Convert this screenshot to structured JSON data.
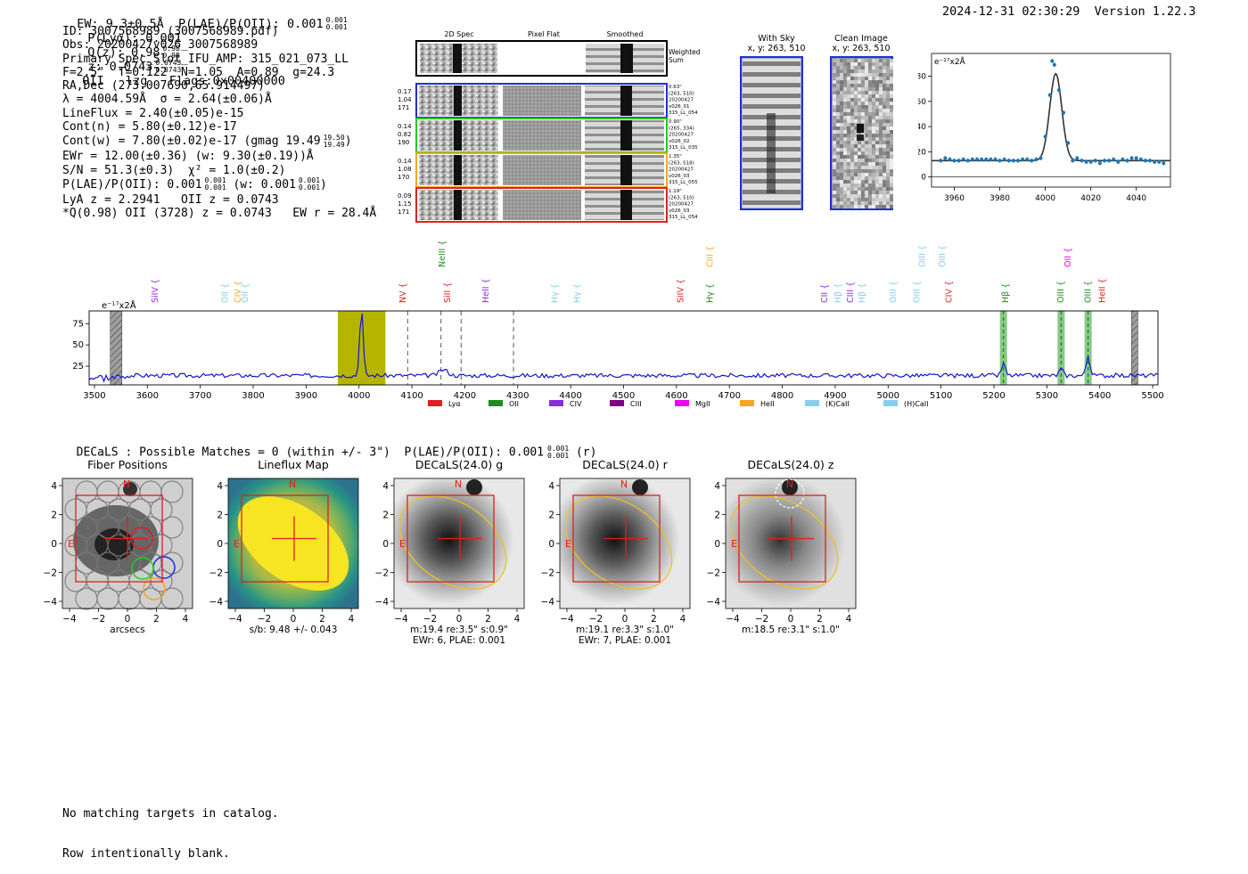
{
  "header": {
    "left": "EW: 9.3±0.5Å  P(LAE)/P(OII): 0.001",
    "left_sup": "0.001",
    "left_sub": "0.001",
    "plya": "P(Lyα): 0.001",
    "qz": "Q(z): 0.98",
    "qz_sup": "0.98",
    "qz_sub": "0.98",
    "z": "z: 0.0743",
    "z_sup": "0.0743",
    "z_sub": "0.0743",
    "tail": "OII   lzg   Flags:0x00400000",
    "right": "2024-12-31 02:30:29  Version 1.22.3"
  },
  "info": {
    "l1": "ID: 3007568989 (3007568989.pdf)",
    "l2": "Obs: 20200427v026_3007568989",
    "l3": "Primary Spec_Slot_IFU_AMP: 315_021_073_LL",
    "l4": "F=2.5\"  T=0.122  N=1.05  A=0.89  g=24.3",
    "l5": "RA,Dec (273.007690,65.914497)",
    "l6": "λ = 4004.59Å  σ = 2.64(±0.06)Å",
    "l7": "LineFlux = 2.40(±0.05)e-15",
    "l8": "Cont(n) = 5.80(±0.12)e-17",
    "l9": "Cont(w) = 7.80(±0.02)e-17 (gmag 19.49",
    "l9_sup": "19.50",
    "l9_sub": "19.49",
    "l9_end": ")",
    "l10": "EWr = 12.00(±0.36) (w: 9.30(±0.19))Å",
    "l11": "S/N = 51.3(±0.3)  χ² = 1.0(±0.2)",
    "l12": "P(LAE)/P(OII): 0.001",
    "l12_sup": "0.001",
    "l12_sub": "0.001",
    "l12_mid": "(w: 0.001",
    "l12_sup2": "0.001",
    "l12_sub2": "0.001",
    "l12_end": ")",
    "l13": "LyA z = 2.2941   OII z = 0.0743",
    "l14": "*Q(0.98) OII (3728) z = 0.0743   EW r = 28.4Å"
  },
  "cutouts": {
    "col_2d": "2D Spec",
    "col_flat": "Pixel Flat",
    "col_smooth": "Smoothed",
    "weighted": "Weighted\nSum",
    "rows": [
      {
        "left": [
          "0.17",
          "1.04",
          "171"
        ],
        "right": [
          "0.63\"",
          "(263, 510)",
          "20200427",
          "v026_01",
          "315_LL_054"
        ],
        "color": "#1f2fd6"
      },
      {
        "left": [
          "0.14",
          "0.82",
          "190"
        ],
        "right": [
          "0.90\"",
          "(265, 334)",
          "20200427",
          "v026_02",
          "315_LL_035"
        ],
        "color": "#22cc22"
      },
      {
        "left": [
          "0.14",
          "1.08",
          "170"
        ],
        "right": [
          "1.35\"",
          "(263, 518)",
          "20200427",
          "v026_03",
          "315_LL_055"
        ],
        "color": "#f5a623"
      },
      {
        "left": [
          "0.09",
          "1.15",
          "171"
        ],
        "right": [
          "1.19\"",
          "(263, 510)",
          "20200427",
          "v026_03",
          "315_LL_054"
        ],
        "color": "#e02020"
      }
    ]
  },
  "sky": {
    "title": "With Sky",
    "coords": "x, y: 263, 510"
  },
  "clean": {
    "title": "Clean Image",
    "coords": "x, y: 263, 510"
  },
  "zoom_chart": {
    "type": "scatter",
    "unit_label": "e⁻¹⁷x2Å",
    "xlim": [
      3950,
      4055
    ],
    "ylim": [
      -8,
      98
    ],
    "xticks": [
      3960,
      3980,
      4000,
      4020,
      4040
    ],
    "yticks": [
      0,
      20,
      40,
      60,
      80
    ],
    "x": [
      3954,
      3956,
      3958,
      3960,
      3962,
      3964,
      3966,
      3968,
      3970,
      3972,
      3974,
      3976,
      3978,
      3980,
      3982,
      3984,
      3986,
      3988,
      3990,
      3992,
      3994,
      3996,
      3998,
      4000,
      4002,
      4003,
      4004,
      4006,
      4008,
      4010,
      4012,
      4014,
      4016,
      4018,
      4020,
      4022,
      4024,
      4026,
      4028,
      4030,
      4032,
      4034,
      4036,
      4038,
      4040,
      4042,
      4044,
      4046,
      4048,
      4050,
      4052
    ],
    "values": [
      13,
      15,
      14,
      13,
      13,
      14,
      13,
      14,
      14,
      14,
      14,
      14,
      14,
      13,
      14,
      13,
      13,
      13,
      14,
      14,
      13,
      14,
      15,
      32,
      65,
      92,
      89,
      69,
      51,
      27,
      13,
      15,
      13,
      12,
      12,
      13,
      11,
      13,
      13,
      14,
      12,
      14,
      13,
      15,
      15,
      14,
      13,
      13,
      12,
      12,
      11
    ],
    "fit_center": 4004.59,
    "fit_sigma": 2.64,
    "fit_peak": 82,
    "fit_base": 13
  },
  "spectrum": {
    "type": "line",
    "unit_label": "e⁻¹⁷x2Å",
    "xlim": [
      3490,
      5510
    ],
    "ylim": [
      3,
      90
    ],
    "xticks": [
      3500,
      3600,
      3700,
      3800,
      3900,
      4000,
      4100,
      4200,
      4300,
      4400,
      4500,
      4600,
      4700,
      4800,
      4900,
      5000,
      5100,
      5200,
      5300,
      5400,
      5500
    ],
    "yticks": [
      25,
      50,
      75
    ],
    "highlight": [
      3960,
      4050
    ],
    "peak_x": 4004.59,
    "dashed": [
      4092,
      4155,
      4193,
      4292
    ],
    "green_bands": [
      5218,
      5327,
      5378
    ],
    "hatched": [
      3530,
      3552,
      5460,
      5472
    ],
    "lines": [
      {
        "label": "SiIV",
        "x": 3615,
        "color": "#8a2be2",
        "row": 1
      },
      {
        "label": "OII",
        "x": 3747,
        "color": "#87ceeb",
        "row": 1
      },
      {
        "label": "CIV",
        "x": 3771,
        "color": "#f5a623",
        "row": 1
      },
      {
        "label": "OII",
        "x": 3785,
        "color": "#87ceeb",
        "row": 1
      },
      {
        "label": "NV",
        "x": 4083,
        "color": "#e02020",
        "row": 1
      },
      {
        "label": "NeIII",
        "x": 4157,
        "color": "#228b22",
        "row": 0
      },
      {
        "label": "SiII",
        "x": 4167,
        "color": "#e02020",
        "row": 1
      },
      {
        "label": "HeII",
        "x": 4240,
        "color": "#8a2be2",
        "row": 1
      },
      {
        "label": "Hγ",
        "x": 4370,
        "color": "#87ceeb",
        "row": 1
      },
      {
        "label": "Hγ",
        "x": 4412,
        "color": "#87ceeb",
        "row": 1
      },
      {
        "label": "SiIV",
        "x": 4608,
        "color": "#e02020",
        "row": 1
      },
      {
        "label": "CIII",
        "x": 4663,
        "color": "#f5a623",
        "row": 0
      },
      {
        "label": "Hγ",
        "x": 4663,
        "color": "#228b22",
        "row": 1
      },
      {
        "label": "CII",
        "x": 4880,
        "color": "#8a2be2",
        "row": 1
      },
      {
        "label": "Hβ",
        "x": 4905,
        "color": "#87ceeb",
        "row": 1
      },
      {
        "label": "CIII",
        "x": 4929,
        "color": "#8a2be2",
        "row": 1
      },
      {
        "label": "Hβ",
        "x": 4951,
        "color": "#87ceeb",
        "row": 1
      },
      {
        "label": "OIII",
        "x": 5010,
        "color": "#87ceeb",
        "row": 1
      },
      {
        "label": "OIII",
        "x": 5064,
        "color": "#87ceeb",
        "row": 0
      },
      {
        "label": "OIII",
        "x": 5054,
        "color": "#87ceeb",
        "row": 1
      },
      {
        "label": "OIII",
        "x": 5102,
        "color": "#87ceeb",
        "row": 0
      },
      {
        "label": "CIV",
        "x": 5115,
        "color": "#e02020",
        "row": 1
      },
      {
        "label": "Hβ",
        "x": 5222,
        "color": "#228b22",
        "row": 1
      },
      {
        "label": "OII",
        "x": 5340,
        "color": "#ee00ee",
        "row": 0
      },
      {
        "label": "OIII",
        "x": 5326,
        "color": "#228b22",
        "row": 1
      },
      {
        "label": "OIII",
        "x": 5378,
        "color": "#228b22",
        "row": 1
      },
      {
        "label": "HeII",
        "x": 5405,
        "color": "#e02020",
        "row": 1
      }
    ],
    "legend": [
      {
        "label": "Lyα",
        "color": "#e02020"
      },
      {
        "label": "OII",
        "color": "#228b22"
      },
      {
        "label": "CIV",
        "color": "#8a2be2"
      },
      {
        "label": "CIII",
        "color": "#800080"
      },
      {
        "label": "MgII",
        "color": "#ee00ee"
      },
      {
        "label": "HeII",
        "color": "#f5a623"
      },
      {
        "label": "(K)CaII",
        "color": "#87ceeb"
      },
      {
        "label": "(H)CaII",
        "color": "#87ceeb"
      }
    ]
  },
  "decals": {
    "line": "DECaLS : Possible Matches = 0 (within +/- 3\")  P(LAE)/P(OII): 0.001",
    "sup": "0.001",
    "sub": "0.001",
    "end": "(r)"
  },
  "panels": [
    {
      "title": "Fiber Positions",
      "cap1": "arcsecs",
      "cap2": ""
    },
    {
      "title": "Lineflux Map",
      "cap1": "s/b: 9.48 +/- 0.043",
      "cap2": ""
    },
    {
      "title": "DECaLS(24.0) g",
      "cap1": "m:19.4  re:3.5\"  s:0.9\"",
      "cap2": "EWr: 6, PLAE: 0.001"
    },
    {
      "title": "DECaLS(24.0) r",
      "cap1": "m:19.1  re:3.3\"  s:1.0\"",
      "cap2": "EWr: 7, PLAE: 0.001"
    },
    {
      "title": "DECaLS(24.0) z",
      "cap1": "m:18.5  re:3.1\"  s:1.0\"",
      "cap2": ""
    }
  ],
  "panel_ticks": [
    "−4",
    "−2",
    "0",
    "2",
    "4"
  ],
  "panel_marks": {
    "n": "N",
    "e": "E"
  },
  "footer": {
    "l1": "No matching targets in catalog.",
    "l2": "Row intentionally blank."
  }
}
